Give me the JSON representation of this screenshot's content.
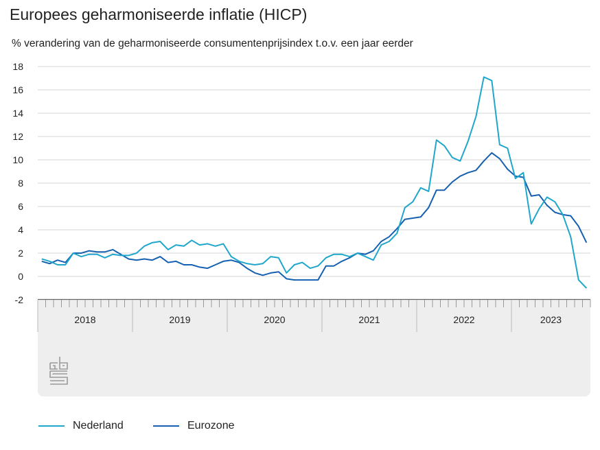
{
  "title": "Europees geharmoniseerde inflatie (HICP)",
  "subtitle": "% verandering van de geharmoniseerde consumentenprijsindex t.o.v. een jaar eerder",
  "logo_text": "cbs",
  "chart_data": {
    "type": "line",
    "title": "Europees geharmoniseerde inflatie (HICP)",
    "ylabel": "% verandering t.o.v. een jaar eerder",
    "xlabel": "",
    "x_start": "2018-01",
    "x_end": "2023-10",
    "x_unit": "month",
    "year_labels": [
      "2018",
      "2019",
      "2020",
      "2021",
      "2022",
      "2023"
    ],
    "ylim": [
      -2,
      18
    ],
    "yticks": [
      -2,
      0,
      2,
      4,
      6,
      8,
      10,
      12,
      14,
      16,
      18
    ],
    "grid": true,
    "legend_placement": "bottom-left",
    "series": [
      {
        "name": "Nederland",
        "color": "#1fa6cb",
        "values": [
          1.5,
          1.3,
          1.0,
          1.0,
          2.0,
          1.7,
          1.9,
          1.9,
          1.6,
          1.9,
          1.8,
          1.8,
          2.0,
          2.6,
          2.9,
          3.0,
          2.3,
          2.7,
          2.6,
          3.1,
          2.7,
          2.8,
          2.6,
          2.8,
          1.7,
          1.3,
          1.1,
          1.0,
          1.1,
          1.7,
          1.6,
          0.3,
          1.0,
          1.2,
          0.7,
          0.9,
          1.6,
          1.9,
          1.9,
          1.7,
          2.0,
          1.7,
          1.4,
          2.7,
          3.0,
          3.7,
          5.9,
          6.4,
          7.6,
          7.3,
          11.7,
          11.2,
          10.2,
          9.9,
          11.6,
          13.7,
          17.1,
          16.8,
          11.3,
          11.0,
          8.4,
          8.9,
          4.5,
          5.8,
          6.8,
          6.4,
          5.3,
          3.4,
          -0.3,
          -1.0
        ]
      },
      {
        "name": "Eurozone",
        "color": "#1560b0",
        "values": [
          1.3,
          1.1,
          1.4,
          1.2,
          2.0,
          2.0,
          2.2,
          2.1,
          2.1,
          2.3,
          1.9,
          1.5,
          1.4,
          1.5,
          1.4,
          1.7,
          1.2,
          1.3,
          1.0,
          1.0,
          0.8,
          0.7,
          1.0,
          1.3,
          1.4,
          1.2,
          0.7,
          0.3,
          0.1,
          0.3,
          0.4,
          -0.2,
          -0.3,
          -0.3,
          -0.3,
          -0.3,
          0.9,
          0.9,
          1.3,
          1.6,
          2.0,
          1.9,
          2.2,
          3.0,
          3.4,
          4.1,
          4.9,
          5.0,
          5.1,
          5.9,
          7.4,
          7.4,
          8.1,
          8.6,
          8.9,
          9.1,
          9.9,
          10.6,
          10.1,
          9.2,
          8.6,
          8.5,
          6.9,
          7.0,
          6.1,
          5.5,
          5.3,
          5.2,
          4.3,
          2.9
        ]
      }
    ]
  }
}
